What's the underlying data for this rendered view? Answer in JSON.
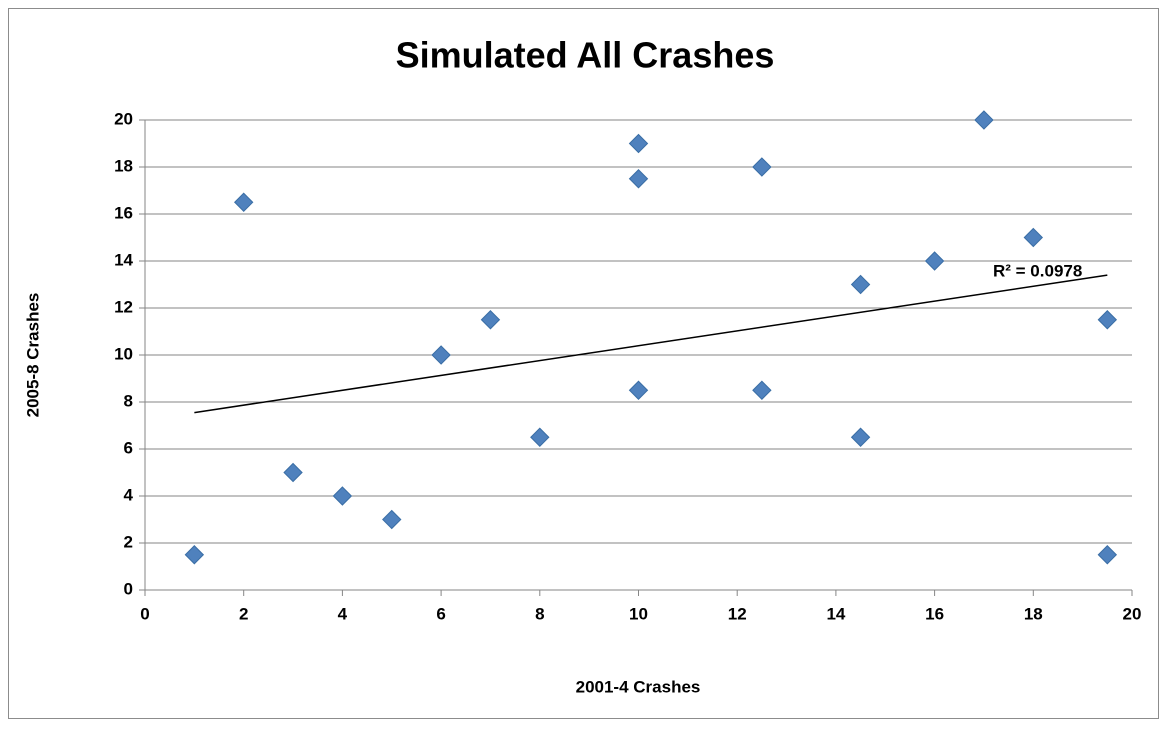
{
  "chart_data": {
    "type": "scatter",
    "title": "Simulated All Crashes",
    "x_label": "2001-4 Crashes",
    "y_label": "2005-8 Crashes",
    "series": [
      {
        "color": "#4f81bd",
        "x": [
          1,
          2,
          3,
          4,
          5,
          6,
          7,
          8,
          10,
          10,
          10,
          12.5,
          12.5,
          14.5,
          14.5,
          16,
          17,
          18,
          19.5,
          19.5
        ],
        "values": [
          1.5,
          16.5,
          5,
          4,
          3,
          10,
          11.5,
          6.5,
          19,
          17.5,
          8.5,
          18,
          8.5,
          13,
          6.5,
          14,
          20,
          15,
          11.5,
          1.5
        ]
      }
    ],
    "trendline": {
      "x": [
        1,
        19.5
      ],
      "y": [
        7.55,
        13.4
      ],
      "label": "R² = 0.0978"
    },
    "xlim": [
      0,
      20
    ],
    "xticks": [
      0,
      2,
      4,
      6,
      8,
      10,
      12,
      14,
      16,
      18,
      20
    ],
    "ylim": [
      0,
      20
    ],
    "yticks": [
      0,
      2,
      4,
      6,
      8,
      10,
      12,
      14,
      16,
      18,
      20
    ],
    "grid": true
  }
}
